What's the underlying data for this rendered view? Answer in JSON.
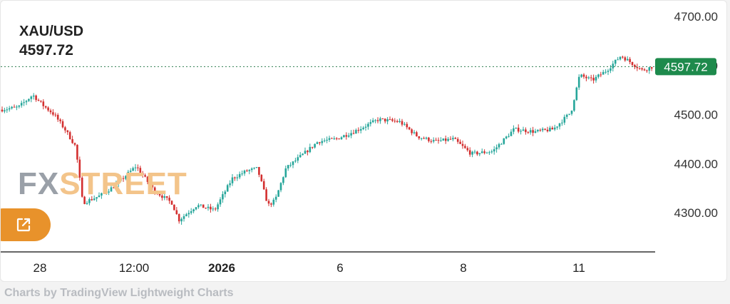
{
  "header": {
    "symbol": "XAU/USD",
    "price": "4597.72"
  },
  "logo": {
    "part1": "FX",
    "part2": "STREET"
  },
  "footer": {
    "credit": "Charts by TradingView Lightweight Charts"
  },
  "colors": {
    "up": "#26a69a",
    "down": "#d32f2f",
    "price_label_bg": "#1e8a4c",
    "accent": "#e8922b"
  },
  "icons": {
    "share": "external-link-icon"
  },
  "chart_data": {
    "type": "candlestick",
    "symbol": "XAU/USD",
    "y_ticks": [
      "4700.00",
      "4600.00",
      "4500.00",
      "4400.00",
      "4300.00"
    ],
    "x_ticks": [
      "28",
      "12:00",
      "2026",
      "6",
      "8",
      "11"
    ],
    "ylim": [
      4222,
      4723
    ],
    "last_price": 4597.72,
    "last_price_label": "4597.72",
    "close_path": [
      [
        0,
        4510
      ],
      [
        25,
        4515
      ],
      [
        45,
        4540
      ],
      [
        60,
        4518
      ],
      [
        75,
        4500
      ],
      [
        90,
        4470
      ],
      [
        105,
        4435
      ],
      [
        115,
        4320
      ],
      [
        140,
        4335
      ],
      [
        160,
        4355
      ],
      [
        190,
        4395
      ],
      [
        215,
        4345
      ],
      [
        240,
        4320
      ],
      [
        250,
        4285
      ],
      [
        275,
        4315
      ],
      [
        300,
        4305
      ],
      [
        325,
        4370
      ],
      [
        345,
        4385
      ],
      [
        360,
        4390
      ],
      [
        375,
        4315
      ],
      [
        385,
        4325
      ],
      [
        400,
        4390
      ],
      [
        425,
        4420
      ],
      [
        445,
        4445
      ],
      [
        470,
        4450
      ],
      [
        495,
        4465
      ],
      [
        530,
        4490
      ],
      [
        560,
        4485
      ],
      [
        585,
        4455
      ],
      [
        610,
        4445
      ],
      [
        635,
        4450
      ],
      [
        660,
        4420
      ],
      [
        690,
        4425
      ],
      [
        720,
        4470
      ],
      [
        750,
        4465
      ],
      [
        775,
        4470
      ],
      [
        800,
        4505
      ],
      [
        812,
        4580
      ],
      [
        830,
        4570
      ],
      [
        850,
        4590
      ],
      [
        870,
        4620
      ],
      [
        885,
        4605
      ],
      [
        900,
        4590
      ],
      [
        915,
        4598
      ]
    ]
  }
}
